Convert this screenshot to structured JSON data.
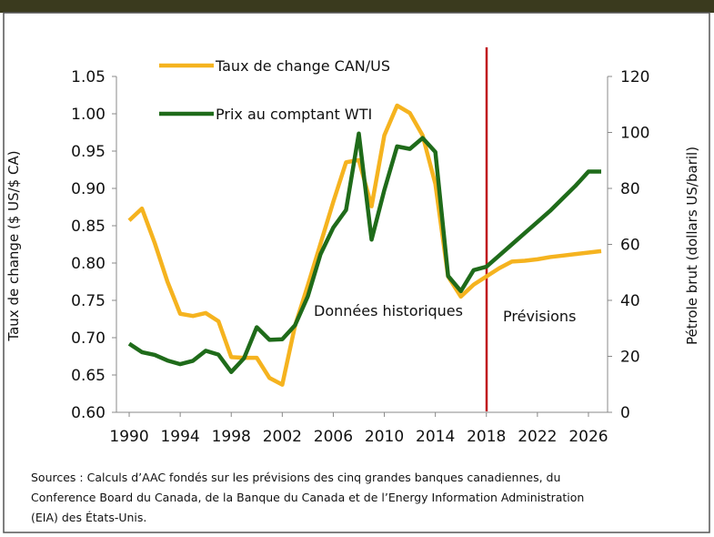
{
  "chart_data": {
    "type": "line",
    "legend": "top-left",
    "y_label": "Taux de change ($ US/$ CA)",
    "y2_label": "Pétrole brut (dollars US/baril)",
    "annotations": [
      "Données historiques",
      "Prévisions"
    ],
    "source": [
      "Sources : Calculs d’AAC fondés sur les prévisions des cinq grandes banques canadiennes, du",
      "Conference Board du Canada, de la Banque du Canada et de l’Energy Information Administration",
      "(EIA) des États-Unis."
    ],
    "x": [
      1990,
      1991,
      1992,
      1993,
      1994,
      1995,
      1996,
      1997,
      1998,
      1999,
      2000,
      2001,
      2002,
      2003,
      2004,
      2005,
      2006,
      2007,
      2008,
      2009,
      2010,
      2011,
      2012,
      2013,
      2014,
      2015,
      2016,
      2017,
      2018,
      2019,
      2020,
      2021,
      2022,
      2023,
      2024,
      2025,
      2026,
      2027
    ],
    "xlim": [
      1989,
      2027.5
    ],
    "xticks": [
      1990,
      1994,
      1998,
      2002,
      2006,
      2010,
      2014,
      2018,
      2022,
      2026
    ],
    "ylim": [
      0.6,
      1.05
    ],
    "yticks": [
      {
        "value": 0.6,
        "label": "0.60"
      },
      {
        "value": 0.65,
        "label": "0.65"
      },
      {
        "value": 0.7,
        "label": "0.70"
      },
      {
        "value": 0.75,
        "label": "0.75"
      },
      {
        "value": 0.8,
        "label": "0.80"
      },
      {
        "value": 0.85,
        "label": "0.85"
      },
      {
        "value": 0.9,
        "label": "0.90"
      },
      {
        "value": 0.95,
        "label": "0.95"
      },
      {
        "value": 1.0,
        "label": "1.00"
      },
      {
        "value": 1.05,
        "label": "1.05"
      }
    ],
    "y2lim": [
      0,
      120
    ],
    "y2ticks": [
      0,
      20,
      40,
      60,
      80,
      100,
      120
    ],
    "series": [
      {
        "name": "Taux de change CAN/US",
        "color": "#f5b31f",
        "values": [
          0.857,
          0.873,
          0.827,
          0.775,
          0.732,
          0.729,
          0.733,
          0.722,
          0.674,
          0.673,
          0.673,
          0.646,
          0.637,
          0.716,
          0.77,
          0.826,
          0.882,
          0.935,
          0.938,
          0.876,
          0.971,
          1.011,
          1.001,
          0.971,
          0.906,
          0.782,
          0.755,
          0.771,
          0.782,
          0.793,
          0.802,
          0.803,
          0.805,
          0.808,
          0.81,
          0.812,
          0.814,
          0.816
        ]
      },
      {
        "name": "Prix au comptant WTI",
        "color": "#1f6b1a",
        "axis": "y2",
        "values": [
          24.5,
          21.5,
          20.5,
          18.5,
          17.2,
          18.4,
          22,
          20.6,
          14.4,
          19.3,
          30.4,
          25.9,
          26.1,
          31.1,
          41.4,
          56.5,
          66,
          72.3,
          99.6,
          61.7,
          79.4,
          95,
          94.1,
          98,
          93,
          48.7,
          43.3,
          50.8,
          52,
          56,
          60,
          64,
          68,
          72,
          76.5,
          81,
          86,
          86
        ]
      }
    ]
  }
}
